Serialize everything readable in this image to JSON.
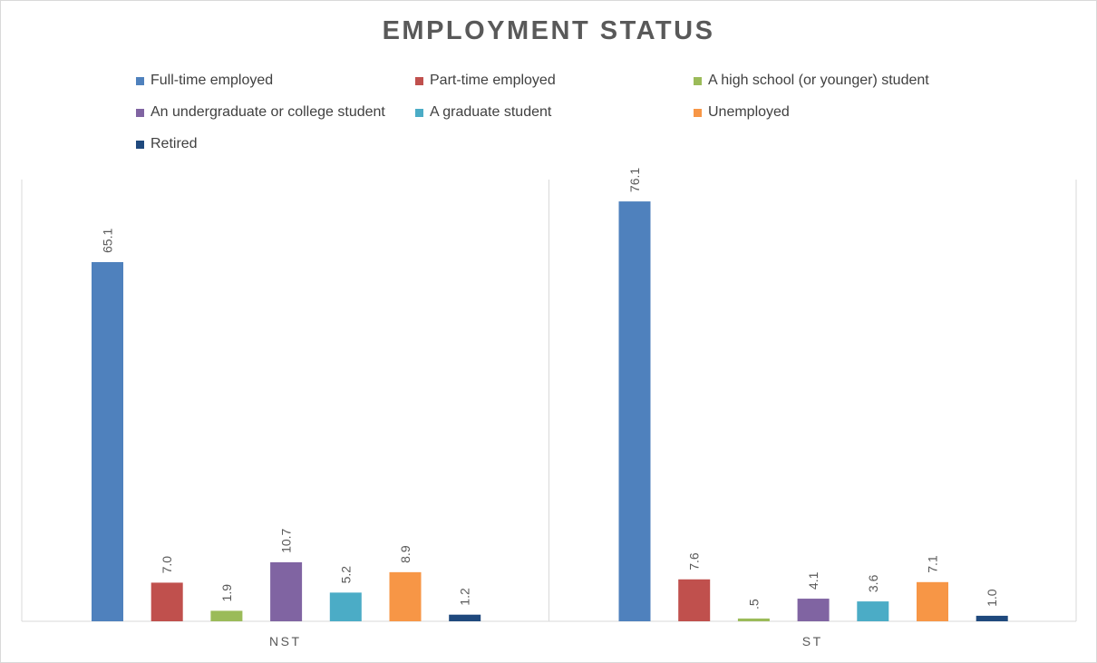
{
  "chart_data": {
    "type": "bar",
    "title": "EMPLOYMENT STATUS",
    "categories": [
      "NST",
      "ST"
    ],
    "series": [
      {
        "name": "Full-time employed",
        "color": "#4f81bd",
        "values": [
          65.1,
          76.1
        ],
        "labels": [
          "65.1",
          "76.1"
        ]
      },
      {
        "name": "Part-time employed",
        "color": "#c0504d",
        "values": [
          7.0,
          7.6
        ],
        "labels": [
          "7.0",
          "7.6"
        ]
      },
      {
        "name": "A high school (or younger) student",
        "color": "#9bbb59",
        "values": [
          1.9,
          0.5
        ],
        "labels": [
          "1.9",
          ".5"
        ]
      },
      {
        "name": "An undergraduate or college student",
        "color": "#8064a2",
        "values": [
          10.7,
          4.1
        ],
        "labels": [
          "10.7",
          "4.1"
        ]
      },
      {
        "name": "A graduate student",
        "color": "#4bacc6",
        "values": [
          5.2,
          3.6
        ],
        "labels": [
          "5.2",
          "3.6"
        ]
      },
      {
        "name": "Unemployed",
        "color": "#f79646",
        "values": [
          8.9,
          7.1
        ],
        "labels": [
          "8.9",
          "7.1"
        ]
      },
      {
        "name": "Retired",
        "color": "#1f497d",
        "values": [
          1.2,
          1.0
        ],
        "labels": [
          "1.2",
          "1.0"
        ]
      }
    ],
    "xlabel": "",
    "ylabel": "",
    "ylim": [
      0,
      80
    ],
    "grid": false,
    "legend": "top",
    "data_labels": "rotated-above-bars"
  }
}
